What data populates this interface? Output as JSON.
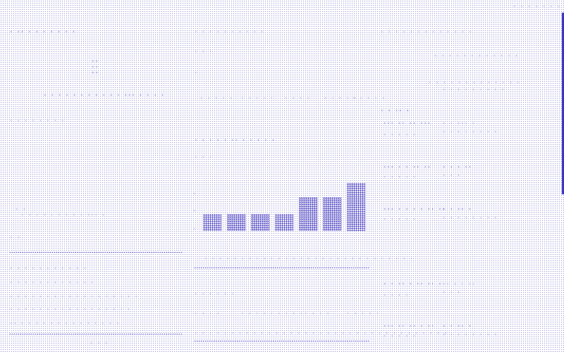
{
  "topbar": {
    "status": "· · · · · · · ·"
  },
  "left": {
    "title": "· ·· · · · · · · ·",
    "marks": [
      "··",
      "··",
      "··"
    ],
    "summary_label": "· · · · · · · · · · · ··· · · · ·",
    "section_a": "· · · · · · · ·",
    "row_a": "· · · · · · · · · ··· ·",
    "mark_b": "· ·",
    "list": [
      "· · · · · · · · · · ·",
      "· · · · · · · · · · · ·",
      "· · · · · · · · · · · · · · · · · ·",
      "· · · · · · · · · · · · · · · · ·",
      "·· · · · · · · · · · · · · · ·"
    ],
    "footer": "· · ·"
  },
  "middle": {
    "title": "· · · · · · · · · ·",
    "sub_a": "· · ·",
    "sub_b": "·",
    "links": [
      "· · · · ·",
      "· · · · ·",
      "· · · ·",
      "· · · · ·",
      "· · · · ·"
    ],
    "chart_title": "· · · · · ·· · · · · ·",
    "chart_sub": "· · ·",
    "axis_marks": [
      "·",
      "·",
      "·"
    ],
    "caption": "· · · · · · · · · · · · · · · · · · · · · · · · · · · · ·",
    "footer_label": "· · · · · ·",
    "table_headers": [
      "· · · ·",
      "· · · · · · · · ·",
      "· · · ·",
      "· · · · ·"
    ],
    "table_row": "· · · · · · · · · · · · · · · · · · · · · · · · · · · · · · · · · · ·"
  },
  "chart_data": {
    "type": "bar",
    "categories": [
      "",
      "",
      "",
      "",
      "",
      "",
      ""
    ],
    "values": [
      7,
      7,
      7,
      7,
      14,
      14,
      20
    ],
    "ylim": [
      0,
      24
    ]
  },
  "right": {
    "title": "· · · · · · · · · · · · ·",
    "meta_a": "· · · · · · · · · · · ·",
    "meta_b": "· · · · · · · · · · · · ·",
    "meta_c": "· · · · · · · · ·",
    "col_header": "· · ·· ·",
    "rows": [
      {
        "a": "··· ·· ·· ···",
        "b": "· · · · ·",
        "c": "· · ··· ·",
        "d": "· · · · · · · ·"
      },
      {
        "a": "··· · · ·· ··",
        "b": "· · · · ·",
        "c": "· · · ··",
        "d": "· · ·"
      },
      {
        "a": "··· · · · · ·· ··",
        "b": "· · · · ·",
        "c": "· · ·· ·",
        "d": "· · · · · · · ·"
      },
      {
        "a": "· · ·· · ·· ·· ·",
        "b": "· · · ·",
        "c": "·· · · ··",
        "d": "· · ·"
      },
      {
        "a": "··· ·· ·· · ··",
        "b": "· · · · ·",
        "c": "· · ·· ·",
        "d": "· · · · · · · ·"
      }
    ]
  }
}
